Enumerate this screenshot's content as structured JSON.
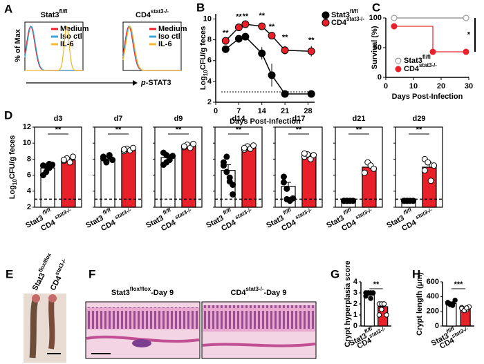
{
  "figure": {
    "panel_letters": [
      "A",
      "B",
      "C",
      "D",
      "E",
      "F",
      "G",
      "H"
    ],
    "E_labels": [
      [
        {
          "text": "Stat3"
        },
        {
          "text": "flox/flox",
          "sup": true
        }
      ],
      [
        {
          "text": "CD4"
        },
        {
          "text": "stat3-/-",
          "sup": true
        }
      ]
    ],
    "F_titles": [
      [
        {
          "text": "Stat3"
        },
        {
          "text": "flox/flox",
          "sup": true
        },
        {
          "text": "-Day 9"
        }
      ],
      [
        {
          "text": "CD4"
        },
        {
          "text": "stat3-/-",
          "sup": true
        },
        {
          "text": "-Day 9"
        }
      ]
    ]
  },
  "chart_data": [
    {
      "type": "flow",
      "titles": [
        [
          {
            "text": "Stat3"
          },
          {
            "text": "fl/fl",
            "sup": true
          }
        ],
        [
          {
            "text": "CD4"
          },
          {
            "text": "stat3-/-",
            "sup": true
          }
        ]
      ],
      "ylabel": "% of Max",
      "xlabel": [
        {
          "text": "p",
          "italic": true
        },
        {
          "text": "-STAT3"
        }
      ],
      "legend": [
        {
          "name": "Medium",
          "color": "#e8202a"
        },
        {
          "name": "Iso ctl",
          "color": "#3aa6dd"
        },
        {
          "name": "IL-6",
          "color": "#f5b82e"
        }
      ]
    },
    {
      "type": "line",
      "ylabel": [
        {
          "text": "Log"
        },
        {
          "text": "10",
          "sub": true
        },
        {
          "text": "CFU/g feces"
        }
      ],
      "xlabel": "Days Post-Infection",
      "x": [
        3,
        7,
        9,
        14,
        17,
        21,
        29
      ],
      "xlim": [
        0,
        30
      ],
      "xticks": [
        0,
        7,
        14,
        21,
        28
      ],
      "ylim": [
        2,
        10.5
      ],
      "yticks": [
        2,
        4,
        6,
        8,
        10
      ],
      "reference_line": 3,
      "series": [
        {
          "name": [
            {
              "text": "Stat3"
            },
            {
              "text": "fl/fl",
              "sup": true
            }
          ],
          "color": "#000000",
          "values": [
            7.1,
            8.1,
            8.3,
            6.7,
            4.6,
            2.8,
            2.8
          ],
          "errors": [
            0.3,
            0.3,
            0.35,
            0.6,
            1.1,
            0.1,
            0.1
          ]
        },
        {
          "name": [
            {
              "text": "CD4"
            },
            {
              "text": "stat3-/-",
              "sup": true
            }
          ],
          "color": "#e8202a",
          "values": [
            7.9,
            9.2,
            9.5,
            9.3,
            8.4,
            7.0,
            6.9
          ],
          "errors": [
            0.2,
            0.2,
            0.2,
            0.2,
            0.3,
            0.4,
            0.5
          ]
        }
      ],
      "annotations": [
        "**",
        "**",
        "**",
        "**",
        "**",
        "**",
        "**"
      ]
    },
    {
      "type": "step",
      "ylabel": "Survival (%)",
      "xlabel": "Days Post-Infection",
      "xlim": [
        0,
        30
      ],
      "xticks": [
        0,
        10,
        20,
        30
      ],
      "ylim": [
        0,
        100
      ],
      "yticks": [
        0,
        50,
        100
      ],
      "series": [
        {
          "name": [
            {
              "text": "Stat3"
            },
            {
              "text": "fl/fl",
              "sup": true
            }
          ],
          "color": "#888888",
          "marker_fill": "#ffffff",
          "x": [
            3,
            29
          ],
          "values": [
            100,
            100
          ]
        },
        {
          "name": [
            {
              "text": "CD4"
            },
            {
              "text": "stat3-/-",
              "sup": true
            }
          ],
          "color": "#e8202a",
          "marker_fill": "#e8202a",
          "x": [
            3,
            17,
            29
          ],
          "values": [
            86,
            43,
            43
          ]
        }
      ],
      "annotation": "*"
    },
    {
      "type": "bar_dots",
      "ylabel": [
        {
          "text": "Log"
        },
        {
          "text": "10",
          "sub": true
        },
        {
          "text": "CFU/g feces"
        }
      ],
      "ylim": [
        2,
        12
      ],
      "yticks": [
        2,
        4,
        6,
        8,
        10,
        12
      ],
      "reference_line": 3,
      "categories": [
        [
          {
            "text": "Stat3 "
          },
          {
            "text": "fl/fl",
            "sup": true,
            "italic": true
          }
        ],
        [
          {
            "text": "CD4 "
          },
          {
            "text": "stat3-/-",
            "sup": true,
            "italic": true
          }
        ]
      ],
      "colors": [
        "#ffffff",
        "#e8202a"
      ],
      "point_colors": [
        "#000000",
        "#ffffff"
      ],
      "panels": [
        {
          "title": "d3",
          "values": [
            6.9,
            7.9
          ],
          "errors": [
            0.35,
            0.2
          ],
          "points": [
            [
              7.2,
              6.4,
              6.9,
              7.3,
              6.0,
              7.1,
              7.4
            ],
            [
              7.8,
              8.1,
              7.6,
              8.3,
              7.9
            ]
          ],
          "annotation": "**"
        },
        {
          "title": "d7",
          "values": [
            8.0,
            9.2
          ],
          "errors": [
            0.3,
            0.15
          ],
          "points": [
            [
              8.3,
              7.6,
              8.5,
              7.9,
              8.1,
              7.7,
              8.4
            ],
            [
              9.0,
              9.3,
              9.1,
              9.4,
              9.2
            ]
          ],
          "annotation": "**"
        },
        {
          "title": "d9",
          "values": [
            8.2,
            9.6
          ],
          "errors": [
            0.35,
            0.15
          ],
          "points": [
            [
              8.8,
              7.6,
              7.9,
              8.4,
              7.3,
              8.5,
              8.1
            ],
            [
              9.5,
              9.8,
              9.4,
              9.9,
              9.6
            ]
          ],
          "annotation": "**"
        },
        {
          "title": "d14",
          "values": [
            6.6,
            9.4
          ],
          "errors": [
            0.7,
            0.15
          ],
          "points": [
            [
              7.2,
              6.4,
              5.2,
              3.6,
              7.6,
              8.3,
              5.7,
              4.8
            ],
            [
              9.2,
              9.6,
              9.3,
              9.7,
              9.4
            ]
          ],
          "annotation": "**"
        },
        {
          "title": "d17",
          "values": [
            4.6,
            8.4
          ],
          "errors": [
            0.5,
            0.25
          ],
          "points": [
            [
              5.8,
              3.0,
              2.9,
              3.1,
              5.1,
              4.3,
              2.8
            ],
            [
              8.3,
              8.6,
              8.0,
              8.5,
              8.7
            ]
          ],
          "annotation": "**"
        },
        {
          "title": "d21",
          "values": [
            2.8,
            7.0
          ],
          "errors": [
            0.05,
            0.35
          ],
          "points": [
            [
              2.8,
              2.8,
              2.8,
              2.8,
              2.8,
              2.8
            ],
            [
              6.3,
              7.6,
              7.2,
              6.8
            ]
          ],
          "annotation": "**"
        },
        {
          "title": "d29",
          "values": [
            2.8,
            7.0
          ],
          "errors": [
            0.05,
            0.6
          ],
          "points": [
            [
              2.8,
              2.8,
              2.8,
              2.8,
              2.8,
              2.8
            ],
            [
              8.0,
              7.6,
              5.3,
              7.2,
              6.6
            ]
          ],
          "annotation": "**"
        }
      ]
    },
    {
      "type": "bar_dots",
      "ylabel": "Crypt hyperplasia score",
      "ylim": [
        0,
        4
      ],
      "yticks": [
        0,
        1,
        2,
        3,
        4
      ],
      "categories": [
        [
          {
            "text": "Stat3"
          },
          {
            "text": "fl/fl",
            "sup": true,
            "italic": true
          }
        ],
        [
          {
            "text": "CD4"
          },
          {
            "text": "stat3-/-",
            "sup": true,
            "italic": true
          }
        ]
      ],
      "colors": [
        "#ffffff",
        "#e8202a"
      ],
      "point_colors": [
        "#000000",
        "#ffffff"
      ],
      "panels": [
        {
          "values": [
            2.8,
            1.75
          ],
          "errors": [
            0.1,
            0.2
          ],
          "points": [
            [
              3,
              3,
              3,
              3,
              2.7,
              3,
              2.5,
              3,
              3
            ],
            [
              2,
              1.5,
              2,
              1,
              1,
              2,
              2
            ]
          ],
          "annotation": "**"
        }
      ]
    },
    {
      "type": "bar_dots",
      "ylabel": "Crypt length (μm)",
      "ylim": [
        0,
        600
      ],
      "yticks": [
        0,
        200,
        400,
        600
      ],
      "categories": [
        [
          {
            "text": "Stat3"
          },
          {
            "text": "fl/fl",
            "sup": true,
            "italic": true
          }
        ],
        [
          {
            "text": "CD4"
          },
          {
            "text": "stat3-/-",
            "sup": true,
            "italic": true
          }
        ]
      ],
      "colors": [
        "#ffffff",
        "#e8202a"
      ],
      "point_colors": [
        "#000000",
        "#ffffff"
      ],
      "panels": [
        {
          "values": [
            305,
            238
          ],
          "errors": [
            12,
            10
          ],
          "points": [
            [
              320,
              300,
              280,
              350,
              310,
              290,
              300
            ],
            [
              250,
              230,
              220,
              260,
              240,
              210,
              245
            ]
          ],
          "annotation": "***"
        }
      ]
    }
  ]
}
